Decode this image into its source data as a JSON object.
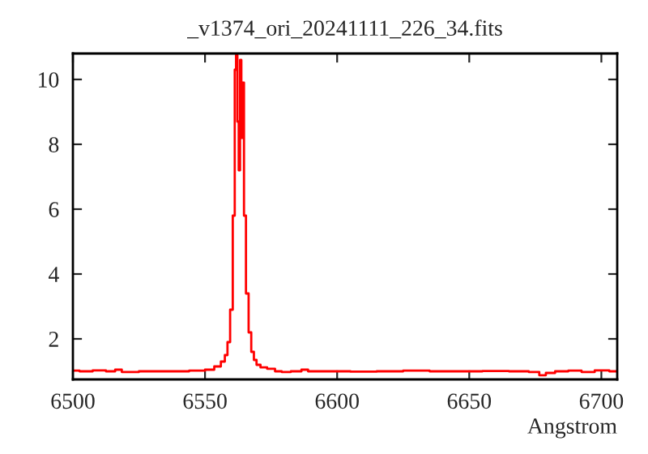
{
  "chart_data": {
    "type": "step",
    "title": "_v1374_ori_20241111_226_34.fits",
    "xlabel": "Angstrom",
    "color": "#ff0000",
    "x": [
      6500,
      6505,
      6510,
      6515,
      6517,
      6520,
      6530,
      6540,
      6548,
      6552,
      6555,
      6557,
      6558,
      6559,
      6560,
      6561,
      6561.5,
      6562,
      6562.5,
      6563,
      6563.5,
      6564,
      6564.5,
      6565,
      6566,
      6567,
      6568,
      6569,
      6570,
      6572,
      6575,
      6578,
      6580,
      6585,
      6588,
      6590,
      6600,
      6610,
      6620,
      6630,
      6640,
      6650,
      6660,
      6670,
      6675,
      6678,
      6680,
      6685,
      6690,
      6695,
      6700,
      6706
    ],
    "values": [
      1.02,
      1.0,
      1.03,
      1.0,
      1.05,
      0.98,
      1.0,
      1.0,
      1.02,
      1.05,
      1.15,
      1.3,
      1.5,
      1.9,
      2.9,
      5.8,
      10.3,
      10.75,
      8.7,
      7.2,
      10.6,
      8.2,
      9.9,
      5.8,
      3.4,
      2.2,
      1.6,
      1.35,
      1.2,
      1.12,
      1.08,
      1.0,
      0.98,
      1.0,
      1.05,
      1.0,
      1.0,
      0.99,
      1.0,
      1.02,
      1.0,
      1.0,
      1.01,
      1.0,
      0.98,
      0.88,
      0.95,
      1.0,
      1.02,
      0.98,
      1.03,
      1.0
    ],
    "xlim": [
      6500,
      6706
    ],
    "ylim": [
      0.75,
      10.8
    ],
    "xticks": [
      6500,
      6550,
      6600,
      6650,
      6700
    ],
    "yticks": [
      2,
      4,
      6,
      8,
      10
    ]
  }
}
